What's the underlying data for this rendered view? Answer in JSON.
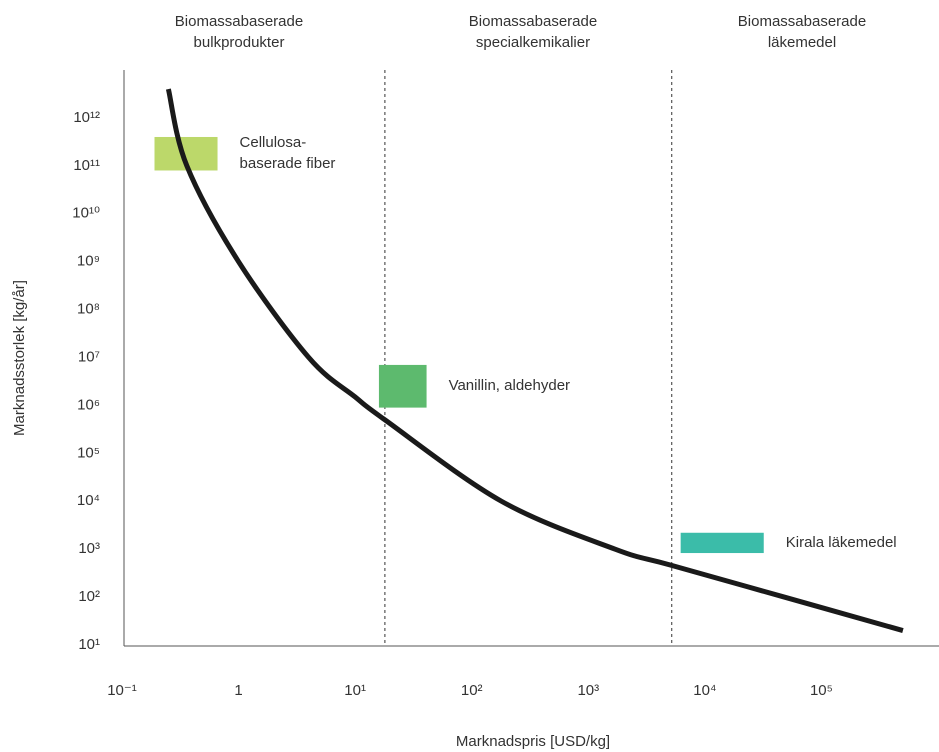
{
  "chart_data": {
    "type": "line",
    "xlabel": "Marknadspris [USD/kg]",
    "ylabel": "Marknadsstorlek [kg/år]",
    "xscale": "log",
    "yscale": "log",
    "xlim": [
      0.1,
      1000000
    ],
    "ylim": [
      10,
      10000000000000
    ],
    "xticks": [
      {
        "value": 0.1,
        "label": "10⁻¹"
      },
      1,
      {
        "value": 10,
        "label": "10¹"
      },
      {
        "value": 100,
        "label": "10²"
      },
      {
        "value": 1000,
        "label": "10³"
      },
      {
        "value": 10000,
        "label": "10⁴"
      },
      {
        "value": 100000,
        "label": "10⁵"
      }
    ],
    "yticks": [
      {
        "value": 10,
        "label": "10¹"
      },
      {
        "value": 100,
        "label": "10²"
      },
      {
        "value": 1000,
        "label": "10³"
      },
      {
        "value": 10000,
        "label": "10⁴"
      },
      {
        "value": 100000,
        "label": "10⁵"
      },
      {
        "value": 1000000,
        "label": "10⁶"
      },
      {
        "value": 10000000,
        "label": "10⁷"
      },
      {
        "value": 100000000,
        "label": "10⁸"
      },
      {
        "value": 1000000000,
        "label": "10⁹"
      },
      {
        "value": 10000000000,
        "label": "10¹⁰"
      },
      {
        "value": 100000000000,
        "label": "10¹¹"
      },
      {
        "value": 1000000000000,
        "label": "10¹²"
      }
    ],
    "series": [
      {
        "color": "#1a1a1a",
        "x": [
          0.25,
          0.36,
          1,
          4,
          10,
          18,
          180,
          1700,
          5000,
          48000,
          500000
        ],
        "values": [
          4000000000000,
          100000000000,
          1000000000,
          10000000,
          1500000,
          500000,
          10000,
          1000,
          470,
          100,
          20
        ]
      }
    ],
    "dividers": [
      18,
      5200
    ],
    "regions": [
      {
        "lines": [
          "Biomassabaserade",
          "bulkprodukter"
        ]
      },
      {
        "lines": [
          "Biomassabaserade",
          "specialkemikalier"
        ]
      },
      {
        "lines": [
          "Biomassabaserade",
          "läkemedel"
        ]
      }
    ],
    "boxes": [
      {
        "lines": [
          "Cellulosa-",
          "baserade fiber"
        ],
        "color": "#bcd86a",
        "x": [
          0.19,
          0.66
        ],
        "y": [
          80000000000,
          400000000000
        ]
      },
      {
        "lines": [
          "Vanillin, aldehyder"
        ],
        "color": "#5dba6e",
        "x": [
          16,
          41
        ],
        "y": [
          900000,
          7000000
        ]
      },
      {
        "lines": [
          "Kirala läkemedel"
        ],
        "color": "#3bbca9",
        "x": [
          6200,
          32000
        ],
        "y": [
          830,
          2200
        ]
      }
    ]
  }
}
